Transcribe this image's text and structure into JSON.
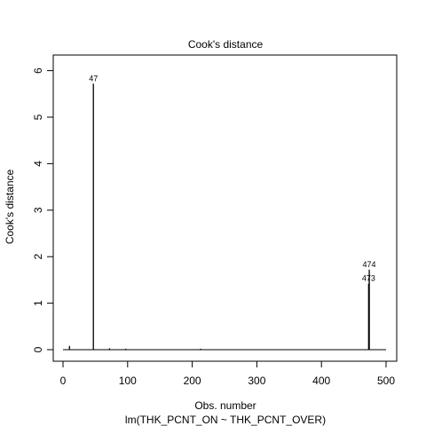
{
  "chart_data": {
    "type": "bar",
    "title": "Cook's distance",
    "xlabel": "Obs. number",
    "ylabel": "Cook's distance",
    "subtitle": "lm(THK_PCNT_ON ~ THK_PCNT_OVER)",
    "xlim": [
      0,
      500
    ],
    "ylim": [
      0,
      6.2
    ],
    "xticks": [
      0,
      100,
      200,
      300,
      400,
      500
    ],
    "yticks": [
      0,
      1,
      2,
      3,
      4,
      5,
      6
    ],
    "grid": false,
    "points": [
      {
        "x": 10,
        "y": 0.08
      },
      {
        "x": 47,
        "y": 5.72
      },
      {
        "x": 72,
        "y": 0.03
      },
      {
        "x": 97,
        "y": 0.02
      },
      {
        "x": 213,
        "y": 0.02
      },
      {
        "x": 473,
        "y": 1.42
      },
      {
        "x": 474,
        "y": 1.72
      }
    ],
    "labels": [
      {
        "x": 47,
        "y": 5.72,
        "text": "47"
      },
      {
        "x": 473,
        "y": 1.42,
        "text": "473"
      },
      {
        "x": 474,
        "y": 1.72,
        "text": "474"
      }
    ]
  }
}
